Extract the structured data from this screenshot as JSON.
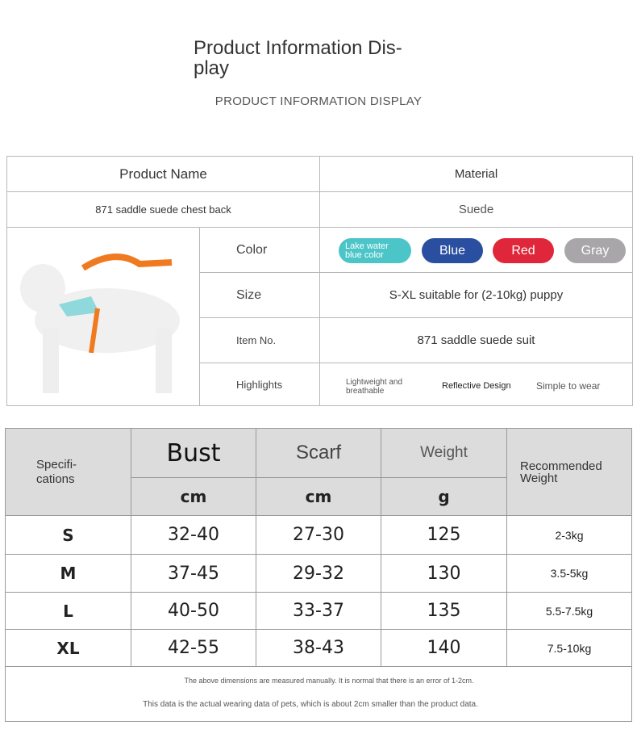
{
  "header": {
    "title": "Product Information Dis-\nplay",
    "title_l1": "Product Information Dis-",
    "title_l2": "play",
    "subtitle": "PRODUCT INFORMATION DISPLAY"
  },
  "info": {
    "product_name_label": "Product Name",
    "material_label": "Material",
    "product_name": "871 saddle suede chest back",
    "material": "Suede",
    "color_label": "Color",
    "colors": [
      {
        "label": "Lake water blue color",
        "color": "#4cc5c8"
      },
      {
        "label": "Blue",
        "color": "#2a4fa0"
      },
      {
        "label": "Red",
        "color": "#e0263a"
      },
      {
        "label": "Gray",
        "color": "#a8a6a8"
      }
    ],
    "size_label": "Size",
    "size": "S-XL suitable for (2-10kg) puppy",
    "item_label": "Item No.",
    "item": "871 saddle suede suit",
    "highlights_label": "Highlights",
    "highlights": [
      "Lightweight and breathable",
      "Reflective Design",
      "Simple to wear"
    ]
  },
  "specs": {
    "spec_label": "Specifi-cations",
    "spec_l1": "Specifi-",
    "spec_l2": "cations",
    "columns": [
      "Bust",
      "Scarf",
      "Weight",
      "Recommended Weight"
    ],
    "units": [
      "cm",
      "cm",
      "g"
    ],
    "rows": [
      {
        "size": "S",
        "bust": "32-40",
        "scarf": "27-30",
        "weight": "125",
        "rec": "2-3kg"
      },
      {
        "size": "M",
        "bust": "37-45",
        "scarf": "29-32",
        "weight": "130",
        "rec": "3.5-5kg"
      },
      {
        "size": "L",
        "bust": "40-50",
        "scarf": "33-37",
        "weight": "135",
        "rec": "5.5-7.5kg"
      },
      {
        "size": "XL",
        "bust": "42-55",
        "scarf": "38-43",
        "weight": "140",
        "rec": "7.5-10kg"
      }
    ],
    "note1": "The above dimensions are measured manually. It is normal that there is an error of 1-2cm.",
    "note2": "This data is the actual wearing data of pets, which is about 2cm smaller than the product data."
  }
}
